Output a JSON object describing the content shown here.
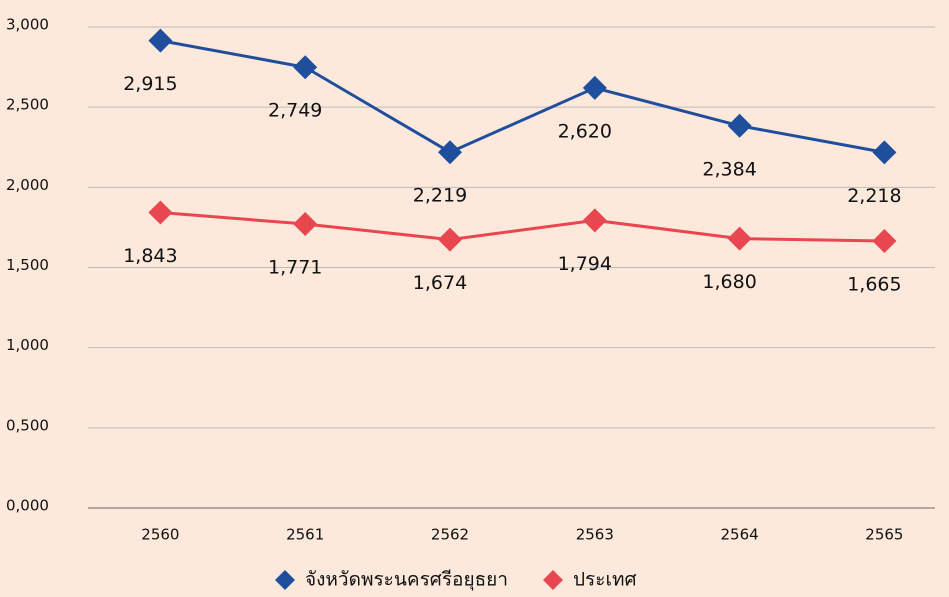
{
  "chart_data": {
    "type": "line",
    "categories": [
      "2560",
      "2561",
      "2562",
      "2563",
      "2564",
      "2565"
    ],
    "series": [
      {
        "name": "จังหวัดพระนครศรีอยุธยา",
        "color": "#1f4e9c",
        "values": [
          2915,
          2749,
          2219,
          2620,
          2384,
          2218
        ],
        "value_labels": [
          "2,915",
          "2,749",
          "2,219",
          "2,620",
          "2,384",
          "2,218"
        ]
      },
      {
        "name": "ประเทศ",
        "color": "#e8474f",
        "values": [
          1843,
          1771,
          1674,
          1794,
          1680,
          1665
        ],
        "value_labels": [
          "1,843",
          "1,771",
          "1,674",
          "1,794",
          "1,680",
          "1,665"
        ]
      }
    ],
    "ylim": [
      0,
      3000
    ],
    "yticks": [
      {
        "value": 0,
        "label": "0,000"
      },
      {
        "value": 500,
        "label": "0,500"
      },
      {
        "value": 1000,
        "label": "1,000"
      },
      {
        "value": 1500,
        "label": "1,500"
      },
      {
        "value": 2000,
        "label": "2,000"
      },
      {
        "value": 2500,
        "label": "2,500"
      },
      {
        "value": 3000,
        "label": "3,000"
      }
    ],
    "grid": true,
    "legend": "bottom"
  }
}
